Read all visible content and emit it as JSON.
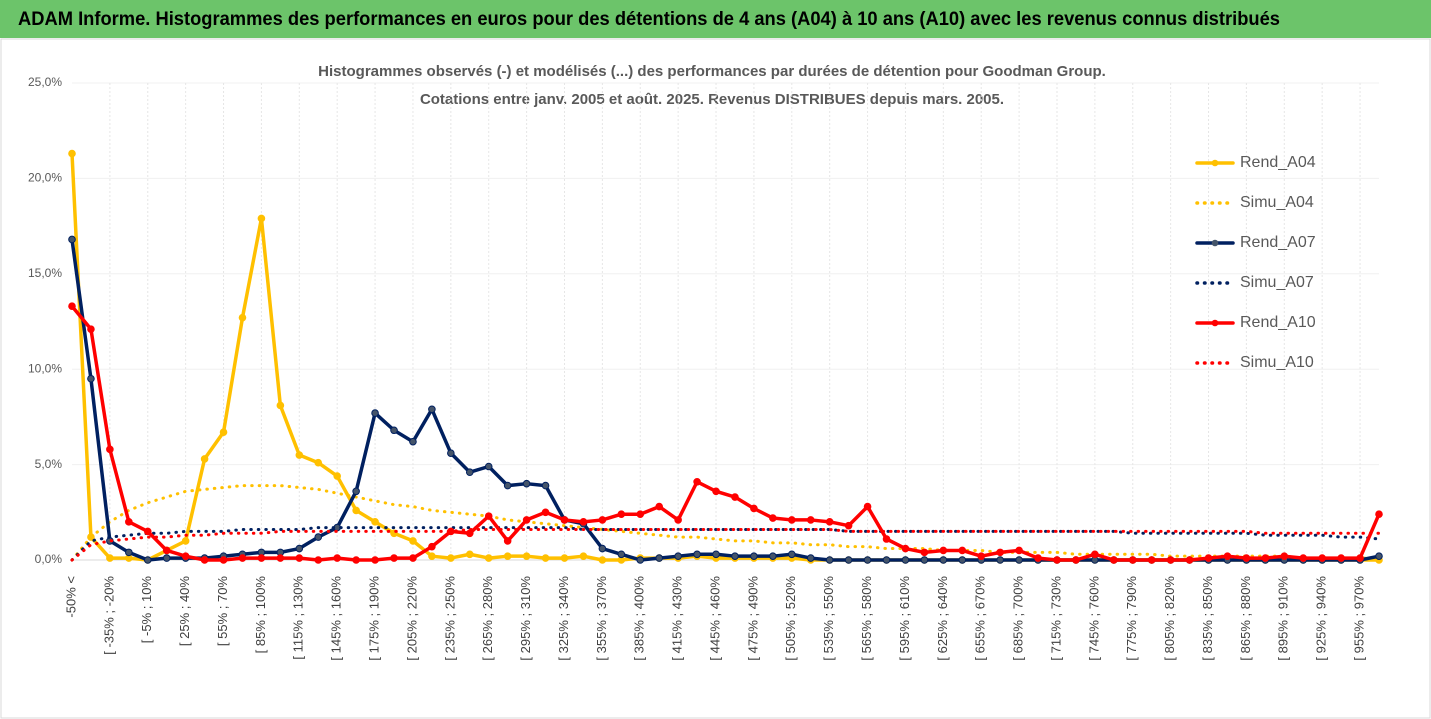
{
  "header": {
    "title": "ADAM Informe. Histogrammes des performances en euros pour des détentions de 4 ans (A04) à 10 ans (A10) avec les revenus connus distribués"
  },
  "chart_data": {
    "type": "line",
    "title": "Histogrammes observés (-) et modélisés (...) des performances par durées de détention pour Goodman Group.",
    "subtitle": "Cotations entre janv. 2005 et août. 2025. Revenus DISTRIBUES depuis mars. 2005.",
    "categories": [
      "-50% <",
      null,
      "[ -35% ; -20%",
      null,
      "[ -5% ; 10%",
      null,
      "[ 25% ; 40%",
      null,
      "[ 55% ; 70%",
      null,
      "[ 85% ; 100%",
      null,
      "[ 115% ; 130%",
      null,
      "[ 145% ; 160%",
      null,
      "[ 175% ; 190%",
      null,
      "[ 205% ; 220%",
      null,
      "[ 235% ; 250%",
      null,
      "[ 265% ; 280%",
      null,
      "[ 295% ; 310%",
      null,
      "[ 325% ; 340%",
      null,
      "[ 355% ; 370%",
      null,
      "[ 385% ; 400%",
      null,
      "[ 415% ; 430%",
      null,
      "[ 445% ; 460%",
      null,
      "[ 475% ; 490%",
      null,
      "[ 505% ; 520%",
      null,
      "[ 535% ; 550%",
      null,
      "[ 565% ; 580%",
      null,
      "[ 595% ; 610%",
      null,
      "[ 625% ; 640%",
      null,
      "[ 655% ; 670%",
      null,
      "[ 685% ; 700%",
      null,
      "[ 715% ; 730%",
      null,
      "[ 745% ; 760%",
      null,
      "[ 775% ; 790%",
      null,
      "[ 805% ; 820%",
      null,
      "[ 835% ; 850%",
      null,
      "[ 865% ; 880%",
      null,
      "[ 895% ; 910%",
      null,
      "[ 925% ; 940%",
      null,
      "[ 955% ; 970%",
      null
    ],
    "series": [
      {
        "name": "Rend_A04",
        "color": "#ffc000",
        "style": "solid",
        "values": [
          21.3,
          1.2,
          0.1,
          0.1,
          0.0,
          0.5,
          1.0,
          5.3,
          6.7,
          12.7,
          17.9,
          8.1,
          5.5,
          5.1,
          4.4,
          2.6,
          2.0,
          1.4,
          1.0,
          0.2,
          0.1,
          0.3,
          0.1,
          0.2,
          0.2,
          0.1,
          0.1,
          0.2,
          0.0,
          0.0,
          0.1,
          0.1,
          0.1,
          0.2,
          0.1,
          0.1,
          0.1,
          0.1,
          0.1,
          0.0,
          0.0,
          0.0,
          0.0,
          0.0,
          0.0,
          0.0,
          0.0,
          0.0,
          0.0,
          0.0,
          0.0,
          0.0,
          0.0,
          0.0,
          0.0,
          0.0,
          0.0,
          0.0,
          0.0,
          0.0,
          0.0,
          0.0,
          0.0,
          0.0,
          0.0,
          0.0,
          0.0,
          0.0,
          0.0,
          0.0
        ]
      },
      {
        "name": "Simu_A04",
        "color": "#ffc000",
        "style": "dotted",
        "values": [
          0.0,
          1.2,
          2.0,
          2.6,
          3.0,
          3.3,
          3.6,
          3.7,
          3.8,
          3.9,
          3.9,
          3.9,
          3.8,
          3.7,
          3.5,
          3.3,
          3.1,
          2.9,
          2.8,
          2.6,
          2.5,
          2.4,
          2.3,
          2.1,
          2.0,
          1.9,
          1.8,
          1.7,
          1.6,
          1.5,
          1.4,
          1.3,
          1.2,
          1.2,
          1.1,
          1.0,
          1.0,
          0.9,
          0.9,
          0.8,
          0.8,
          0.7,
          0.7,
          0.6,
          0.6,
          0.6,
          0.5,
          0.5,
          0.5,
          0.4,
          0.4,
          0.4,
          0.4,
          0.3,
          0.3,
          0.3,
          0.3,
          0.3,
          0.2,
          0.2,
          0.2,
          0.2,
          0.2,
          0.2,
          0.2,
          0.1,
          0.1,
          0.1,
          0.1,
          0.1
        ]
      },
      {
        "name": "Rend_A07",
        "color": "#002060",
        "style": "solid",
        "values": [
          16.8,
          9.5,
          1.0,
          0.4,
          0.0,
          0.1,
          0.1,
          0.1,
          0.2,
          0.3,
          0.4,
          0.4,
          0.6,
          1.2,
          1.7,
          3.6,
          7.7,
          6.8,
          6.2,
          7.9,
          5.6,
          4.6,
          4.9,
          3.9,
          4.0,
          3.9,
          2.1,
          1.9,
          0.6,
          0.3,
          0.0,
          0.1,
          0.2,
          0.3,
          0.3,
          0.2,
          0.2,
          0.2,
          0.3,
          0.1,
          0.0,
          0.0,
          0.0,
          0.0,
          0.0,
          0.0,
          0.0,
          0.0,
          0.0,
          0.0,
          0.0,
          0.0,
          0.0,
          0.0,
          0.0,
          0.0,
          0.0,
          0.0,
          0.0,
          0.0,
          0.0,
          0.0,
          0.0,
          0.0,
          0.0,
          0.0,
          0.0,
          0.0,
          0.0,
          0.2
        ]
      },
      {
        "name": "Simu_A07",
        "color": "#002060",
        "style": "dotted",
        "values": [
          0.0,
          1.0,
          1.2,
          1.3,
          1.4,
          1.4,
          1.5,
          1.5,
          1.5,
          1.6,
          1.6,
          1.6,
          1.6,
          1.7,
          1.7,
          1.7,
          1.7,
          1.7,
          1.7,
          1.7,
          1.7,
          1.7,
          1.7,
          1.7,
          1.7,
          1.7,
          1.7,
          1.6,
          1.6,
          1.6,
          1.6,
          1.6,
          1.6,
          1.6,
          1.6,
          1.6,
          1.6,
          1.6,
          1.6,
          1.6,
          1.6,
          1.5,
          1.5,
          1.5,
          1.5,
          1.5,
          1.5,
          1.5,
          1.5,
          1.5,
          1.5,
          1.5,
          1.5,
          1.5,
          1.5,
          1.5,
          1.4,
          1.4,
          1.4,
          1.4,
          1.4,
          1.4,
          1.4,
          1.3,
          1.3,
          1.3,
          1.3,
          1.2,
          1.2,
          1.1
        ]
      },
      {
        "name": "Rend_A10",
        "color": "#ff0000",
        "style": "solid",
        "values": [
          13.3,
          12.1,
          5.8,
          2.0,
          1.5,
          0.5,
          0.2,
          0.0,
          0.0,
          0.1,
          0.1,
          0.1,
          0.1,
          0.0,
          0.1,
          0.0,
          0.0,
          0.1,
          0.1,
          0.7,
          1.5,
          1.4,
          2.3,
          1.0,
          2.1,
          2.5,
          2.1,
          2.0,
          2.1,
          2.4,
          2.4,
          2.8,
          2.1,
          4.1,
          3.6,
          3.3,
          2.7,
          2.2,
          2.1,
          2.1,
          2.0,
          1.8,
          2.8,
          1.1,
          0.6,
          0.4,
          0.5,
          0.5,
          0.2,
          0.4,
          0.5,
          0.1,
          0.0,
          0.0,
          0.3,
          0.0,
          0.0,
          0.0,
          0.0,
          0.0,
          0.1,
          0.2,
          0.1,
          0.1,
          0.2,
          0.1,
          0.1,
          0.1,
          0.1,
          2.4
        ]
      },
      {
        "name": "Simu_A10",
        "color": "#ff0000",
        "style": "dotted",
        "values": [
          0.0,
          0.8,
          1.0,
          1.1,
          1.2,
          1.2,
          1.3,
          1.3,
          1.4,
          1.4,
          1.4,
          1.5,
          1.5,
          1.5,
          1.5,
          1.5,
          1.5,
          1.5,
          1.5,
          1.5,
          1.5,
          1.6,
          1.6,
          1.6,
          1.6,
          1.6,
          1.6,
          1.6,
          1.6,
          1.6,
          1.6,
          1.6,
          1.6,
          1.6,
          1.6,
          1.6,
          1.6,
          1.6,
          1.6,
          1.6,
          1.6,
          1.5,
          1.5,
          1.5,
          1.5,
          1.5,
          1.5,
          1.5,
          1.5,
          1.5,
          1.5,
          1.5,
          1.5,
          1.5,
          1.5,
          1.5,
          1.5,
          1.5,
          1.5,
          1.5,
          1.5,
          1.5,
          1.5,
          1.4,
          1.4,
          1.4,
          1.4,
          1.4,
          1.4,
          1.4
        ]
      }
    ],
    "ylim": [
      0,
      25
    ],
    "yticks": [
      {
        "value": 0,
        "label": "0,0%"
      },
      {
        "value": 5,
        "label": "5,0%"
      },
      {
        "value": 10,
        "label": "10,0%"
      },
      {
        "value": 15,
        "label": "15,0%"
      },
      {
        "value": 20,
        "label": "20,0%"
      },
      {
        "value": 25,
        "label": "25,0%"
      }
    ],
    "grid": true,
    "legend": "right"
  }
}
